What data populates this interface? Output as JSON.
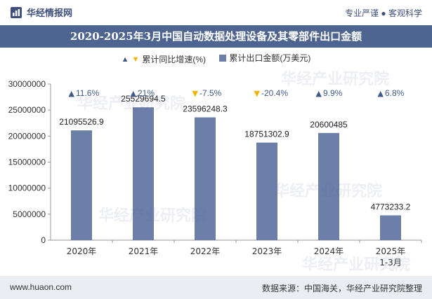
{
  "header": {
    "brand": "华经情报网",
    "slogan": "专业严谨 ● 客观科学"
  },
  "watermark": "华经产业研究院",
  "chart_data": {
    "type": "bar",
    "title": "2020-2025年3月中国自动数据处理设备及其零部件出口金额",
    "categories": [
      "2020年",
      "2021年",
      "2022年",
      "2023年",
      "2024年",
      "2025年\n1-3月"
    ],
    "series": [
      {
        "name": "累计出口金额(万美元)",
        "values": [
          21095526.9,
          25529694.5,
          23596248.3,
          18751302.9,
          20600485,
          4773233.2
        ],
        "labels": [
          "21095526.9",
          "25529694.5",
          "23596248.3",
          "18751302.9",
          "20600485",
          "4773233.2"
        ]
      }
    ],
    "growth": {
      "name": "累计同比增速(%)",
      "values": [
        11.6,
        21,
        -7.5,
        -20.4,
        9.9,
        6.8
      ],
      "labels": [
        "11.6%",
        "21%",
        "-7.5%",
        "-20.4%",
        "9.9%",
        "6.8%"
      ]
    },
    "ylim": [
      0,
      30000000
    ],
    "yticks": [
      0,
      5000000,
      10000000,
      15000000,
      20000000,
      25000000,
      30000000
    ],
    "grid": false,
    "legend_position": "top-center",
    "colors": {
      "bar": "#6b7fa8",
      "up": "#3e5a86",
      "down": "#f2b400",
      "title_bg": "#4e6591"
    }
  },
  "footer": {
    "url": "www.huaon.com",
    "source": "数据来源：中国海关，华经产业研究院整理"
  }
}
